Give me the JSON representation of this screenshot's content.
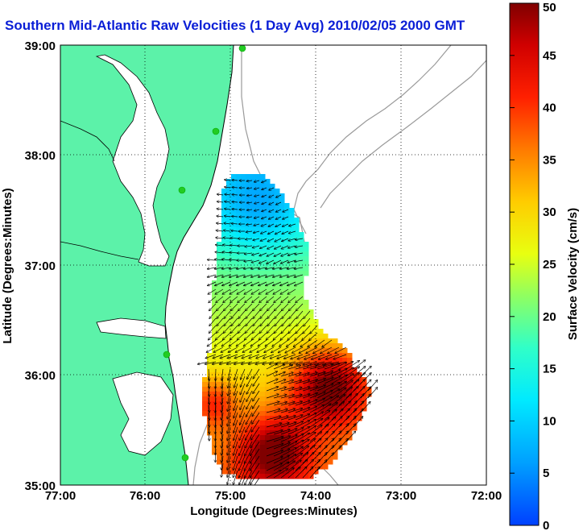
{
  "title": "Southern Mid-Atlantic Raw Velocities (1 Day Avg) 2010/02/05 2000 GMT",
  "x_axis": {
    "label": "Longitude (Degrees:Minutes)",
    "ticks": [
      "77:00",
      "76:00",
      "75:00",
      "74:00",
      "73:00",
      "72:00"
    ]
  },
  "y_axis": {
    "label": "Latitude (Degrees:Minutes)",
    "ticks": [
      "39:00",
      "38:00",
      "37:00",
      "36:00",
      "35:00"
    ]
  },
  "colorbar": {
    "label": "Surface Velocity (cm/s)",
    "ticks": [
      "50",
      "45",
      "40",
      "35",
      "30",
      "25",
      "20",
      "15",
      "10",
      "5",
      "0"
    ],
    "min": 0,
    "max": 50
  },
  "colors": {
    "land": "#5cf2a9",
    "title": "#0a1ed6",
    "coast": "#000000",
    "bathymetry": "#9a9a9a",
    "station": "#22cc22"
  }
}
